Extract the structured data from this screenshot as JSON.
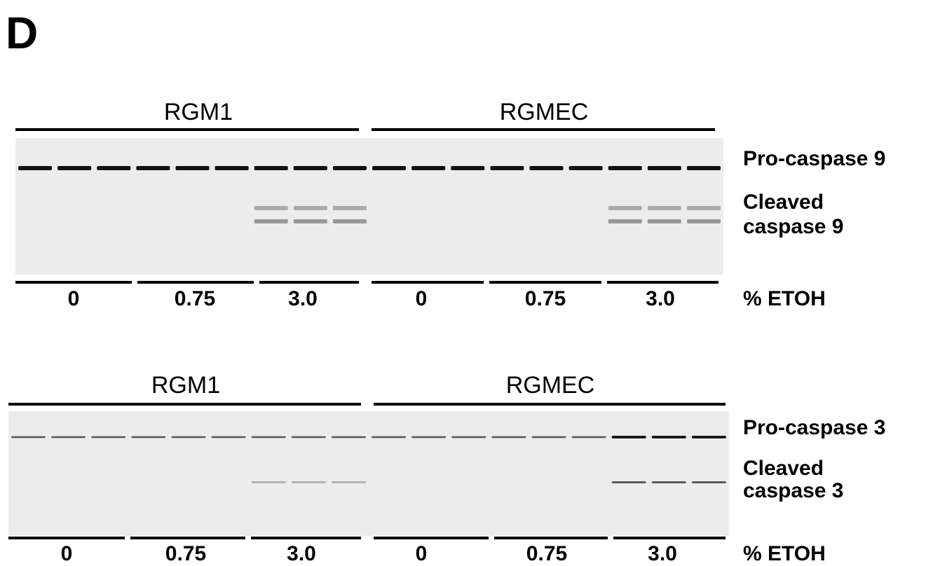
{
  "panel_label": "D",
  "blots": [
    {
      "groups": [
        "RGM1",
        "RGMEC"
      ],
      "bands": [
        "Pro-caspase 9",
        "Cleaved",
        "caspase 9"
      ],
      "doses": [
        "0",
        "0.75",
        "3.0",
        "0",
        "0.75",
        "3.0"
      ],
      "dose_unit": "% ETOH"
    },
    {
      "groups": [
        "RGM1",
        "RGMEC"
      ],
      "bands": [
        "Pro-caspase 3",
        "Cleaved",
        "caspase 3"
      ],
      "doses": [
        "0",
        "0.75",
        "3.0",
        "0",
        "0.75",
        "3.0"
      ],
      "dose_unit": "% ETOH"
    }
  ]
}
